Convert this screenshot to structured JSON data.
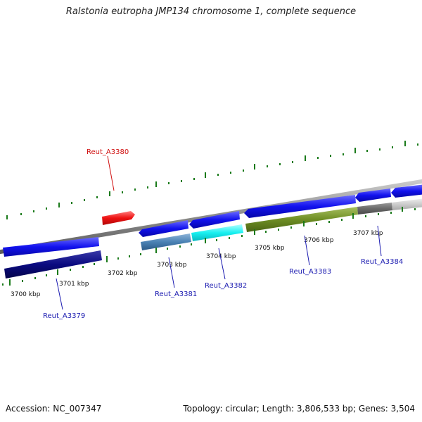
{
  "title": "Ralstonia eutropha JMP134 chromosome 1, complete sequence",
  "footer": {
    "accession": "Accession: NC_007347",
    "summary": "Topology: circular; Length: 3,806,533 bp; Genes: 3,504"
  },
  "colors": {
    "tick": "#1a7a1a",
    "backbone": "#8a8a8a",
    "forward_gene": "#1010e8",
    "reverse_gene_red": "#ee1111",
    "label_blue": "#1a1ab0",
    "label_red": "#d01010"
  },
  "axis_labels": [
    "3700 kbp",
    "3701 kbp",
    "3702 kbp",
    "3703 kbp",
    "3704 kbp",
    "3705 kbp",
    "3706 kbp",
    "3707 kbp"
  ],
  "gene_labels": [
    {
      "name": "Reut_A3380",
      "color": "red"
    },
    {
      "name": "Reut_A3379",
      "color": "blue"
    },
    {
      "name": "Reut_A3381",
      "color": "blue"
    },
    {
      "name": "Reut_A3382",
      "color": "blue"
    },
    {
      "name": "Reut_A3383",
      "color": "blue"
    },
    {
      "name": "Reut_A3384",
      "color": "blue"
    }
  ]
}
